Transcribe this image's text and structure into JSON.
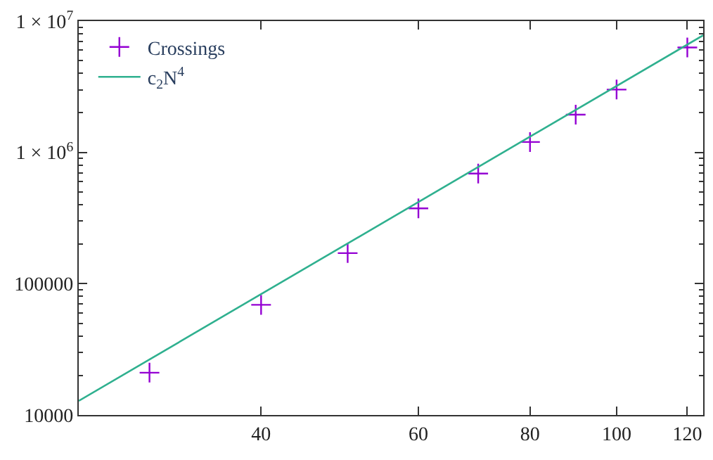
{
  "chart_data": {
    "type": "scatter",
    "log": "xy",
    "legend": "top left",
    "xlim": [
      25,
      125
    ],
    "xticks": [
      40,
      60,
      80,
      100,
      120
    ],
    "ylim": [
      10000,
      10000000
    ],
    "yticks": [
      10000,
      100000,
      {
        "value": 1000000,
        "label": "1 × 10$^{6}$"
      },
      {
        "value": 10000000,
        "label": "1 × 10$^{7}$"
      }
    ],
    "series": [
      {
        "name": "Crossings",
        "marker": "cross",
        "color": "#9400d3",
        "x": [
          30,
          40,
          50,
          60,
          70,
          80,
          90,
          100,
          120
        ],
        "values": [
          21000,
          69000,
          171000,
          375000,
          690000,
          1200000,
          1940000,
          3010000,
          6300000
        ]
      },
      {
        "name": "c$_{2}$N$^{4}$",
        "type": "line",
        "marker": "none",
        "color": "#2fb08f",
        "x": [
          25,
          125
        ],
        "values": [
          12800,
          7800000
        ]
      }
    ]
  }
}
